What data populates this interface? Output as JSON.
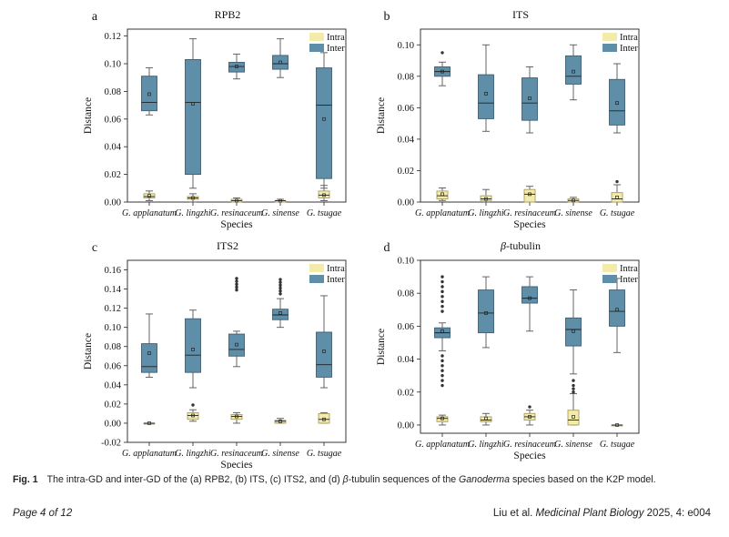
{
  "colors": {
    "intra": "#f3eba9",
    "intra_edge": "#a89e62",
    "inter": "#5f8ea8",
    "inter_edge": "#3f5f74",
    "whisker": "#555555"
  },
  "caption": {
    "label": "Fig. 1",
    "text_pre": "The intra-GD and inter-GD of the (a) RPB2, (b) ITS, (c) ITS2, and (d) ",
    "beta": "β",
    "text_mid": "-tubulin sequences of the ",
    "genus": "Ganoderma",
    "text_post": " species based on the K2P model."
  },
  "footer": {
    "page": "Page 4 of 12",
    "authors": "Liu et al. ",
    "journal": "Medicinal Plant Biology",
    "citation": " 2025, 4: e004"
  },
  "chart_data": [
    {
      "type": "box",
      "panel": "a",
      "title": "RPB2",
      "xlabel": "Species",
      "ylabel": "Distance",
      "ylim": [
        0,
        0.125
      ],
      "yticks": [
        "0.00",
        "0.02",
        "0.04",
        "0.06",
        "0.08",
        "0.10",
        "0.12"
      ],
      "categories": [
        "G. applanatum",
        "G. lingzhi",
        "G. resinaceum",
        "G. sinense",
        "G. tsugae"
      ],
      "legend": [
        "Intra",
        "Inter"
      ],
      "series": [
        {
          "name": "Intra",
          "boxes": [
            {
              "wlo": 0.001,
              "q1": 0.003,
              "med": 0.004,
              "q3": 0.006,
              "whi": 0.008,
              "mean": 0.0045,
              "out": []
            },
            {
              "wlo": 0.0,
              "q1": 0.002,
              "med": 0.003,
              "q3": 0.004,
              "whi": 0.006,
              "mean": 0.003,
              "out": []
            },
            {
              "wlo": 0.0,
              "q1": 0.0,
              "med": 0.001,
              "q3": 0.002,
              "whi": 0.003,
              "mean": 0.001,
              "out": []
            },
            {
              "wlo": 0.0,
              "q1": 0.0,
              "med": 0.001,
              "q3": 0.001,
              "whi": 0.002,
              "mean": 0.001,
              "out": []
            },
            {
              "wlo": 0.001,
              "q1": 0.003,
              "med": 0.005,
              "q3": 0.008,
              "whi": 0.012,
              "mean": 0.005,
              "out": []
            }
          ]
        },
        {
          "name": "Inter",
          "boxes": [
            {
              "wlo": 0.063,
              "q1": 0.066,
              "med": 0.072,
              "q3": 0.091,
              "whi": 0.097,
              "mean": 0.078,
              "out": []
            },
            {
              "wlo": 0.01,
              "q1": 0.02,
              "med": 0.072,
              "q3": 0.103,
              "whi": 0.118,
              "mean": 0.071,
              "out": []
            },
            {
              "wlo": 0.089,
              "q1": 0.094,
              "med": 0.098,
              "q3": 0.101,
              "whi": 0.107,
              "mean": 0.098,
              "out": []
            },
            {
              "wlo": 0.09,
              "q1": 0.096,
              "med": 0.1,
              "q3": 0.106,
              "whi": 0.118,
              "mean": 0.101,
              "out": []
            },
            {
              "wlo": 0.01,
              "q1": 0.017,
              "med": 0.07,
              "q3": 0.097,
              "whi": 0.108,
              "mean": 0.06,
              "out": []
            }
          ]
        }
      ]
    },
    {
      "type": "box",
      "panel": "b",
      "title": "ITS",
      "xlabel": "Species",
      "ylabel": "Distance",
      "ylim": [
        0,
        0.11
      ],
      "yticks": [
        "0.00",
        "0.02",
        "0.04",
        "0.06",
        "0.08",
        "0.10"
      ],
      "categories": [
        "G. applanatum",
        "G. lingzhi",
        "G. resinaceum",
        "G. sinense",
        "G. tsugae"
      ],
      "legend": [
        "Intra",
        "Inter"
      ],
      "series": [
        {
          "name": "Intra",
          "boxes": [
            {
              "wlo": 0.001,
              "q1": 0.002,
              "med": 0.004,
              "q3": 0.007,
              "whi": 0.009,
              "mean": 0.005,
              "out": []
            },
            {
              "wlo": 0.0,
              "q1": 0.001,
              "med": 0.002,
              "q3": 0.004,
              "whi": 0.008,
              "mean": 0.002,
              "out": []
            },
            {
              "wlo": 0.0,
              "q1": 0.0,
              "med": 0.005,
              "q3": 0.008,
              "whi": 0.01,
              "mean": 0.005,
              "out": []
            },
            {
              "wlo": 0.0,
              "q1": 0.0,
              "med": 0.001,
              "q3": 0.002,
              "whi": 0.003,
              "mean": 0.001,
              "out": []
            },
            {
              "wlo": 0.0,
              "q1": 0.0,
              "med": 0.002,
              "q3": 0.006,
              "whi": 0.011,
              "mean": 0.003,
              "out": [
                0.013
              ]
            }
          ]
        },
        {
          "name": "Inter",
          "boxes": [
            {
              "wlo": 0.074,
              "q1": 0.08,
              "med": 0.083,
              "q3": 0.086,
              "whi": 0.089,
              "mean": 0.083,
              "out": [
                0.095
              ]
            },
            {
              "wlo": 0.045,
              "q1": 0.053,
              "med": 0.063,
              "q3": 0.081,
              "whi": 0.1,
              "mean": 0.069,
              "out": []
            },
            {
              "wlo": 0.044,
              "q1": 0.052,
              "med": 0.063,
              "q3": 0.079,
              "whi": 0.086,
              "mean": 0.066,
              "out": []
            },
            {
              "wlo": 0.065,
              "q1": 0.075,
              "med": 0.08,
              "q3": 0.093,
              "whi": 0.1,
              "mean": 0.083,
              "out": []
            },
            {
              "wlo": 0.044,
              "q1": 0.049,
              "med": 0.058,
              "q3": 0.078,
              "whi": 0.088,
              "mean": 0.063,
              "out": []
            }
          ]
        }
      ]
    },
    {
      "type": "box",
      "panel": "c",
      "title": "ITS2",
      "xlabel": "Species",
      "ylabel": "Distance",
      "ylim": [
        -0.02,
        0.17
      ],
      "yticks": [
        "-0.02",
        "0.00",
        "0.02",
        "0.04",
        "0.06",
        "0.08",
        "0.10",
        "0.12",
        "0.14",
        "0.16"
      ],
      "categories": [
        "G. applanatum",
        "G. lingzhi",
        "G. resinaceum",
        "G. sinense",
        "G. tsugae"
      ],
      "legend": [
        "Intra",
        "Inter"
      ],
      "series": [
        {
          "name": "Intra",
          "boxes": [
            {
              "wlo": 0.0,
              "q1": 0.0,
              "med": 0.0,
              "q3": 0.0,
              "whi": 0.0,
              "mean": 0.0,
              "out": []
            },
            {
              "wlo": 0.002,
              "q1": 0.004,
              "med": 0.008,
              "q3": 0.011,
              "whi": 0.014,
              "mean": 0.008,
              "out": [
                0.019
              ]
            },
            {
              "wlo": 0.0,
              "q1": 0.004,
              "med": 0.007,
              "q3": 0.009,
              "whi": 0.011,
              "mean": 0.007,
              "out": []
            },
            {
              "wlo": 0.0,
              "q1": 0.0,
              "med": 0.002,
              "q3": 0.003,
              "whi": 0.005,
              "mean": 0.002,
              "out": []
            },
            {
              "wlo": 0.0,
              "q1": 0.0,
              "med": 0.004,
              "q3": 0.01,
              "whi": 0.011,
              "mean": 0.004,
              "out": []
            }
          ]
        },
        {
          "name": "Inter",
          "boxes": [
            {
              "wlo": 0.048,
              "q1": 0.053,
              "med": 0.059,
              "q3": 0.083,
              "whi": 0.114,
              "mean": 0.073,
              "out": []
            },
            {
              "wlo": 0.037,
              "q1": 0.053,
              "med": 0.071,
              "q3": 0.109,
              "whi": 0.118,
              "mean": 0.077,
              "out": []
            },
            {
              "wlo": 0.059,
              "q1": 0.07,
              "med": 0.077,
              "q3": 0.093,
              "whi": 0.096,
              "mean": 0.082,
              "out": [
                0.139,
                0.142,
                0.145,
                0.148,
                0.151
              ]
            },
            {
              "wlo": 0.1,
              "q1": 0.108,
              "med": 0.113,
              "q3": 0.119,
              "whi": 0.13,
              "mean": 0.115,
              "out": [
                0.135,
                0.138,
                0.141,
                0.144,
                0.147,
                0.15
              ]
            },
            {
              "wlo": 0.037,
              "q1": 0.048,
              "med": 0.061,
              "q3": 0.095,
              "whi": 0.133,
              "mean": 0.075,
              "out": []
            }
          ]
        }
      ]
    },
    {
      "type": "box",
      "panel": "d",
      "title": "β-tubulin",
      "xlabel": "Species",
      "ylabel": "Distance",
      "ylim": [
        -0.005,
        0.1
      ],
      "yticks": [
        "0.00",
        "0.02",
        "0.04",
        "0.06",
        "0.08",
        "0.10"
      ],
      "categories": [
        "G. applanatum",
        "G. lingzhi",
        "G. resinaceum",
        "G. sinense",
        "G. tsugae"
      ],
      "legend": [
        "Intra",
        "Inter"
      ],
      "series": [
        {
          "name": "Intra",
          "boxes": [
            {
              "wlo": 0.0,
              "q1": 0.002,
              "med": 0.004,
              "q3": 0.005,
              "whi": 0.006,
              "mean": 0.004,
              "out": []
            },
            {
              "wlo": 0.0,
              "q1": 0.002,
              "med": 0.003,
              "q3": 0.005,
              "whi": 0.007,
              "mean": 0.004,
              "out": []
            },
            {
              "wlo": 0.0,
              "q1": 0.003,
              "med": 0.005,
              "q3": 0.007,
              "whi": 0.009,
              "mean": 0.005,
              "out": [
                0.011
              ]
            },
            {
              "wlo": 0.0,
              "q1": 0.0,
              "med": 0.003,
              "q3": 0.009,
              "whi": 0.019,
              "mean": 0.005,
              "out": []
            },
            {
              "wlo": 0.0,
              "q1": 0.0,
              "med": 0.0,
              "q3": 0.0,
              "whi": 0.0,
              "mean": 0.0,
              "out": []
            }
          ]
        },
        {
          "name": "Inter",
          "boxes": [
            {
              "wlo": 0.045,
              "q1": 0.053,
              "med": 0.056,
              "q3": 0.059,
              "whi": 0.062,
              "mean": 0.057,
              "out": [
                0.024,
                0.027,
                0.03,
                0.033,
                0.036,
                0.039,
                0.042,
                0.069,
                0.072,
                0.075,
                0.078,
                0.081,
                0.084,
                0.087,
                0.09
              ]
            },
            {
              "wlo": 0.047,
              "q1": 0.056,
              "med": 0.068,
              "q3": 0.082,
              "whi": 0.09,
              "mean": 0.068,
              "out": []
            },
            {
              "wlo": 0.057,
              "q1": 0.074,
              "med": 0.077,
              "q3": 0.084,
              "whi": 0.09,
              "mean": 0.077,
              "out": []
            },
            {
              "wlo": 0.031,
              "q1": 0.048,
              "med": 0.058,
              "q3": 0.065,
              "whi": 0.082,
              "mean": 0.057,
              "out": [
                0.02,
                0.022,
                0.024,
                0.027
              ]
            },
            {
              "wlo": 0.044,
              "q1": 0.06,
              "med": 0.069,
              "q3": 0.082,
              "whi": 0.089,
              "mean": 0.07,
              "out": []
            }
          ]
        }
      ]
    }
  ]
}
